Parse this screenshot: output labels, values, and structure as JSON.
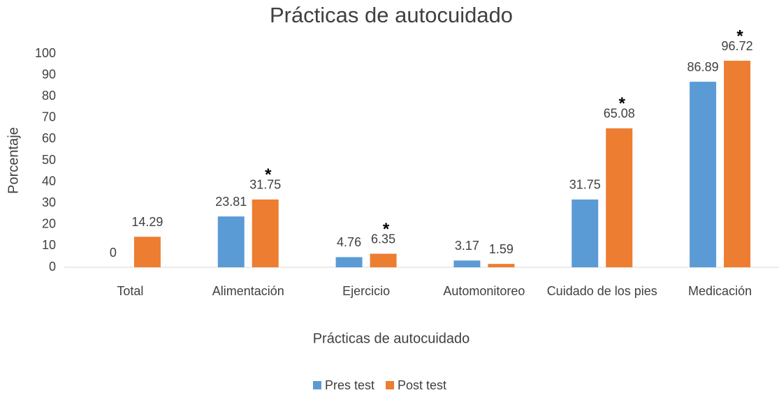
{
  "chart_data": {
    "type": "bar",
    "title": "Prácticas de autocuidado",
    "x_label": "Prácticas de autocuidado",
    "y_label": "Porcentaje",
    "categories": [
      "Total",
      "Alimentación",
      "Ejercicio",
      "Automonitoreo",
      "Cuidado de los pies",
      "Medicación"
    ],
    "series": [
      {
        "name": "Pres test",
        "color": "#5b9bd5",
        "values": [
          0,
          23.81,
          4.76,
          3.17,
          31.75,
          86.89
        ]
      },
      {
        "name": "Post test",
        "color": "#ed7d31",
        "values": [
          14.29,
          31.75,
          6.35,
          1.59,
          65.08,
          96.72
        ],
        "annotations": [
          null,
          "*",
          "*",
          null,
          "*",
          "*"
        ]
      }
    ],
    "ylim": [
      0,
      100
    ],
    "yticks": [
      0,
      10,
      20,
      30,
      40,
      50,
      60,
      70,
      80,
      90,
      100
    ],
    "grid": false,
    "legend": "bottom"
  }
}
